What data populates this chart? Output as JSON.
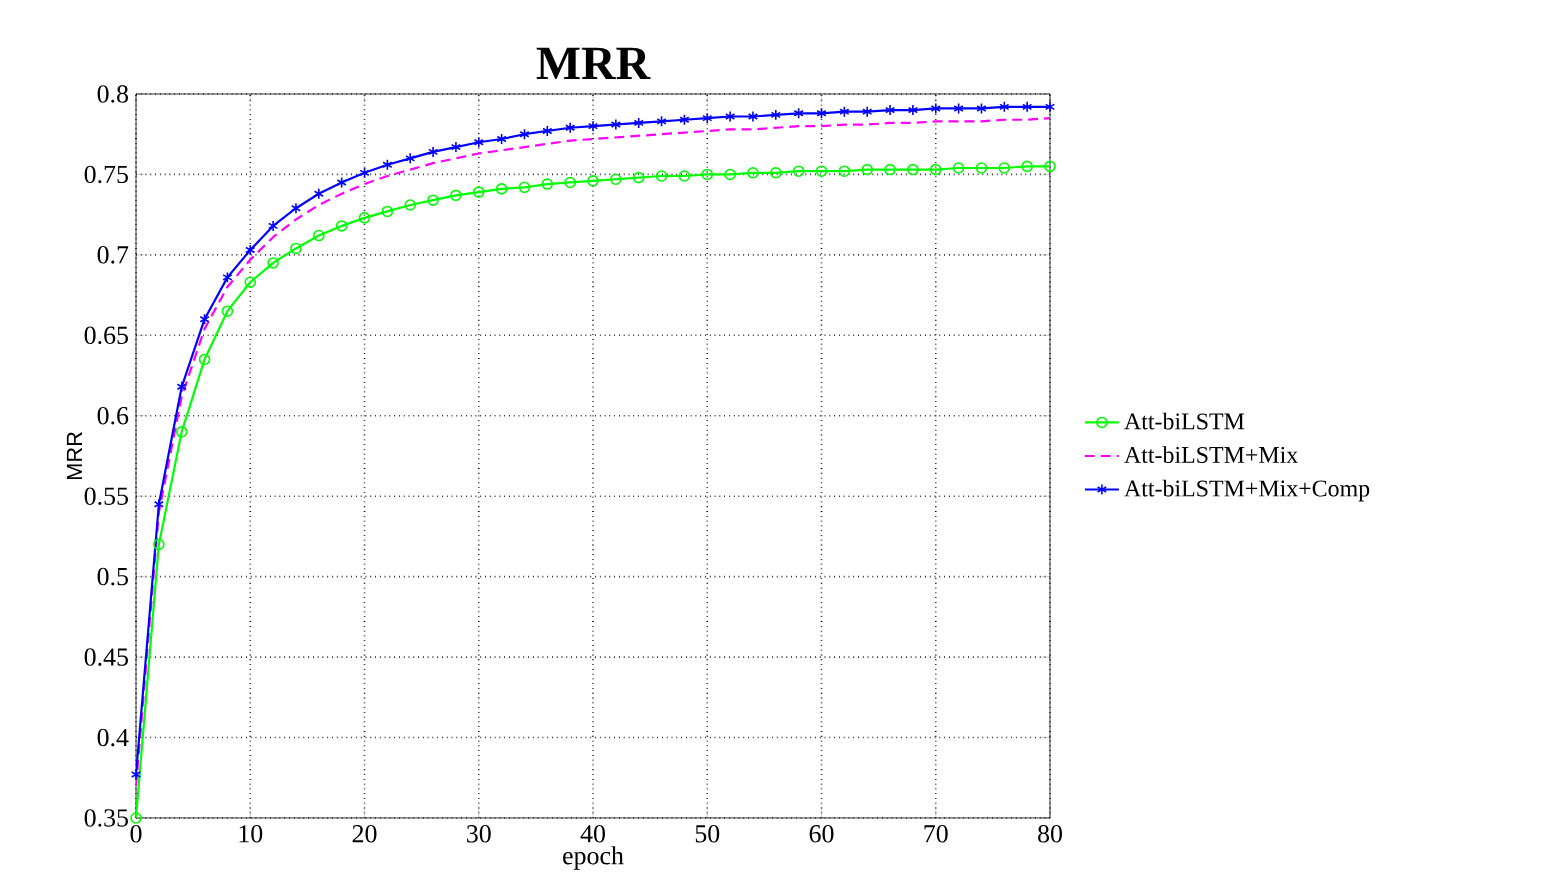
{
  "chart_data": {
    "type": "line",
    "title": "MRR",
    "xlabel": "epoch",
    "ylabel": "MRR",
    "x": [
      0,
      2,
      4,
      6,
      8,
      10,
      12,
      14,
      16,
      18,
      20,
      22,
      24,
      26,
      28,
      30,
      32,
      34,
      36,
      38,
      40,
      42,
      44,
      46,
      48,
      50,
      52,
      54,
      56,
      58,
      60,
      62,
      64,
      66,
      68,
      70,
      72,
      74,
      76,
      78,
      80
    ],
    "series": [
      {
        "name": "Att-biLSTM",
        "color": "#00ff00",
        "marker": "circle",
        "line_style": "solid",
        "values": [
          0.35,
          0.52,
          0.59,
          0.635,
          0.665,
          0.683,
          0.695,
          0.704,
          0.712,
          0.718,
          0.723,
          0.727,
          0.731,
          0.734,
          0.737,
          0.739,
          0.741,
          0.742,
          0.744,
          0.745,
          0.746,
          0.747,
          0.748,
          0.749,
          0.749,
          0.75,
          0.75,
          0.751,
          0.751,
          0.752,
          0.752,
          0.752,
          0.753,
          0.753,
          0.753,
          0.753,
          0.754,
          0.754,
          0.754,
          0.755,
          0.755
        ]
      },
      {
        "name": "Att-biLSTM+Mix",
        "color": "#ff00ff",
        "marker": "none",
        "line_style": "dashed",
        "values": [
          0.37,
          0.54,
          0.612,
          0.654,
          0.68,
          0.697,
          0.711,
          0.722,
          0.731,
          0.738,
          0.744,
          0.749,
          0.753,
          0.757,
          0.76,
          0.763,
          0.765,
          0.767,
          0.769,
          0.771,
          0.772,
          0.773,
          0.774,
          0.775,
          0.776,
          0.777,
          0.778,
          0.778,
          0.779,
          0.78,
          0.78,
          0.781,
          0.781,
          0.782,
          0.782,
          0.783,
          0.783,
          0.783,
          0.784,
          0.784,
          0.785
        ]
      },
      {
        "name": "Att-biLSTM+Mix+Comp",
        "color": "#0000ff",
        "marker": "cross",
        "line_style": "solid",
        "values": [
          0.377,
          0.545,
          0.618,
          0.66,
          0.686,
          0.703,
          0.718,
          0.729,
          0.738,
          0.745,
          0.751,
          0.756,
          0.76,
          0.764,
          0.767,
          0.77,
          0.772,
          0.775,
          0.777,
          0.779,
          0.78,
          0.781,
          0.782,
          0.783,
          0.784,
          0.785,
          0.786,
          0.786,
          0.787,
          0.788,
          0.788,
          0.789,
          0.789,
          0.79,
          0.79,
          0.791,
          0.791,
          0.791,
          0.792,
          0.792,
          0.792
        ]
      }
    ],
    "xlim": [
      0,
      80
    ],
    "ylim": [
      0.35,
      0.8
    ],
    "xticks": [
      0,
      10,
      20,
      30,
      40,
      50,
      60,
      70,
      80
    ],
    "yticks": [
      0.35,
      0.4,
      0.45,
      0.5,
      0.55,
      0.6,
      0.65,
      0.7,
      0.75,
      0.8
    ],
    "grid": true,
    "legend": "right"
  }
}
